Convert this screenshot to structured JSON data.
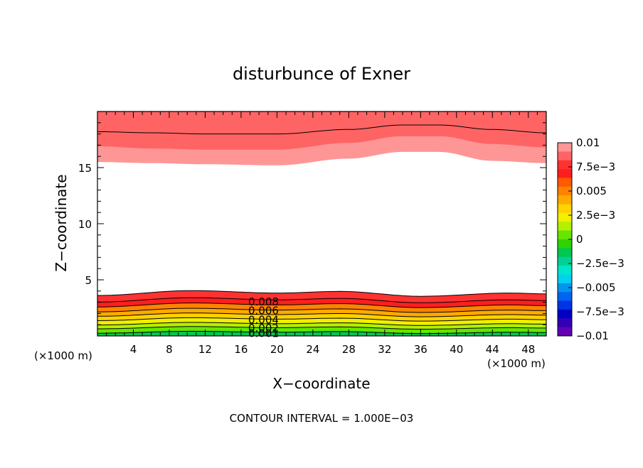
{
  "chart_data": {
    "type": "heatmap",
    "title": "disturbunce of Exner",
    "xlabel": "X−coordinate",
    "ylabel": "Z−coordinate",
    "x_unit_label": "(×1000 m)",
    "y_unit_label": "(×1000 m)",
    "footer": "CONTOUR INTERVAL = 1.000E−03",
    "xlim": [
      0,
      50
    ],
    "ylim": [
      0,
      20
    ],
    "x_ticks": [
      4,
      8,
      12,
      16,
      20,
      24,
      28,
      32,
      36,
      40,
      44,
      48
    ],
    "y_ticks": [
      5,
      10,
      15
    ],
    "contour_interval": 0.001,
    "colorbar": {
      "range": [
        -0.01,
        0.01
      ],
      "tick_labels": [
        "0.01",
        "7.5e−3",
        "0.005",
        "2.5e−3",
        "0",
        "−2.5e−3",
        "−0.005",
        "−7.5e−3",
        "−0.01"
      ],
      "colors": [
        "#ff9696",
        "#ff6464",
        "#ff3232",
        "#ff1e1e",
        "#ff5a00",
        "#ff8200",
        "#ffaa00",
        "#ffd200",
        "#f0f000",
        "#b4f000",
        "#64e600",
        "#32d200",
        "#00c850",
        "#00d296",
        "#00e6c8",
        "#00d2f0",
        "#0096f0",
        "#0064f0",
        "#0032e6",
        "#0000c8",
        "#3200b4",
        "#6400b4"
      ]
    },
    "top_band": {
      "boundary_0.009": [
        [
          0,
          15.5
        ],
        [
          6,
          15.4
        ],
        [
          12,
          15.3
        ],
        [
          20,
          15.2
        ],
        [
          28,
          15.8
        ],
        [
          34,
          16.4
        ],
        [
          38,
          16.4
        ],
        [
          44,
          15.6
        ],
        [
          50,
          15.4
        ]
      ],
      "boundary_0.010": [
        [
          0,
          16.9
        ],
        [
          6,
          16.7
        ],
        [
          12,
          16.6
        ],
        [
          20,
          16.6
        ],
        [
          28,
          17.2
        ],
        [
          34,
          17.8
        ],
        [
          38,
          17.8
        ],
        [
          44,
          17.1
        ],
        [
          50,
          16.8
        ]
      ],
      "contour_line": [
        [
          0,
          18.2
        ],
        [
          6,
          18.1
        ],
        [
          12,
          18.0
        ],
        [
          20,
          18.0
        ],
        [
          28,
          18.4
        ],
        [
          34,
          18.8
        ],
        [
          38,
          18.8
        ],
        [
          44,
          18.4
        ],
        [
          50,
          18.1
        ]
      ]
    },
    "bottom_band": {
      "levels": [
        0.001,
        0.002,
        0.003,
        0.004,
        0.005,
        0.006,
        0.007,
        0.008,
        0.009
      ],
      "heights": [
        0.3,
        0.7,
        1.05,
        1.45,
        1.85,
        2.25,
        2.7,
        3.15,
        3.75
      ],
      "wave_amplitude": 0.15,
      "wave_x_positions": [
        0,
        10.5,
        20,
        27,
        36,
        46,
        50
      ],
      "wave_offsets": [
        -0.1,
        0.2,
        0.05,
        0.15,
        -0.15,
        0.05,
        0.0
      ]
    },
    "contour_labels": [
      {
        "text": "0.008",
        "x": 18.5,
        "z": 3.1
      },
      {
        "text": "0.006",
        "x": 18.5,
        "z": 2.3
      },
      {
        "text": "0.004",
        "x": 18.5,
        "z": 1.5
      },
      {
        "text": "0.002",
        "x": 18.5,
        "z": 0.75
      },
      {
        "text": "0.001",
        "x": 18.5,
        "z": 0.3
      }
    ]
  }
}
